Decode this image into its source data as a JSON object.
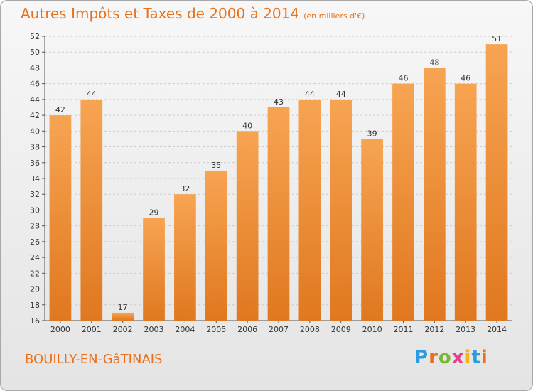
{
  "header": {
    "title": "Autres Impôts et Taxes de 2000 à 2014",
    "unit": "(en milliers d'€)"
  },
  "footer": {
    "commune": "BOUILLY-EN-GâTINAIS",
    "logo": "Proxiti"
  },
  "colors": {
    "title": "#e8701a",
    "bar_top": "#f7a452",
    "bar_bottom": "#e0781f",
    "grid": "#cccccc"
  },
  "chart_data": {
    "type": "bar",
    "title": "Autres Impôts et Taxes de 2000 à 2014",
    "subtitle": "(en milliers d'€)",
    "xlabel": "",
    "ylabel": "",
    "categories": [
      "2000",
      "2001",
      "2002",
      "2003",
      "2004",
      "2005",
      "2006",
      "2007",
      "2008",
      "2009",
      "2010",
      "2011",
      "2012",
      "2013",
      "2014"
    ],
    "values": [
      42,
      44,
      17,
      29,
      32,
      35,
      40,
      43,
      44,
      44,
      39,
      46,
      48,
      46,
      51
    ],
    "ylim": [
      16,
      52
    ],
    "yticks": [
      16,
      18,
      20,
      22,
      24,
      26,
      28,
      30,
      32,
      34,
      36,
      38,
      40,
      42,
      44,
      46,
      48,
      50,
      52
    ],
    "grid": true,
    "data_labels": true
  }
}
